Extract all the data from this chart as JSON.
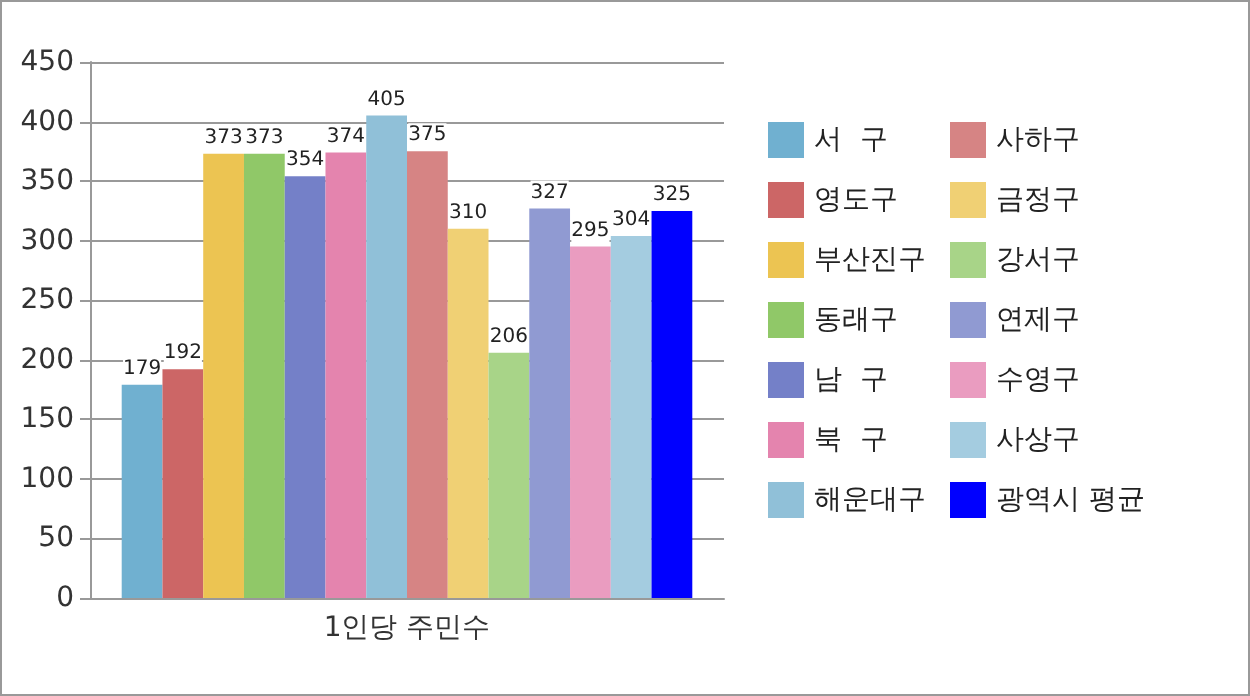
{
  "chart_data": {
    "type": "bar",
    "categories": [
      "1인당 주민수"
    ],
    "series": [
      {
        "name": "서  구",
        "color": "#70b0d0",
        "values": [
          179
        ]
      },
      {
        "name": "영도구",
        "color": "#cc6666",
        "values": [
          192
        ]
      },
      {
        "name": "부산진구",
        "color": "#ecc452",
        "values": [
          373
        ]
      },
      {
        "name": "동래구",
        "color": "#90c868",
        "values": [
          373
        ]
      },
      {
        "name": "남  구",
        "color": "#7480c8",
        "values": [
          354
        ]
      },
      {
        "name": "북  구",
        "color": "#e484ae",
        "values": [
          374
        ]
      },
      {
        "name": "해운대구",
        "color": "#90c0d8",
        "values": [
          405
        ]
      },
      {
        "name": "사하구",
        "color": "#d68484",
        "values": [
          375
        ]
      },
      {
        "name": "금정구",
        "color": "#f0d074",
        "values": [
          310
        ]
      },
      {
        "name": "강서구",
        "color": "#a8d488",
        "values": [
          206
        ]
      },
      {
        "name": "연제구",
        "color": "#909ad2",
        "values": [
          327
        ]
      },
      {
        "name": "수영구",
        "color": "#ea9cc0",
        "values": [
          295
        ]
      },
      {
        "name": "사상구",
        "color": "#a4cce0",
        "values": [
          304
        ]
      },
      {
        "name": "광역시 평균",
        "color": "#0000ff",
        "values": [
          325
        ]
      }
    ],
    "ylim": [
      0,
      450
    ],
    "yticks": [
      0,
      50,
      100,
      150,
      200,
      250,
      300,
      350,
      400,
      450
    ],
    "grid": "y",
    "legend": "right",
    "data_labels": true
  }
}
